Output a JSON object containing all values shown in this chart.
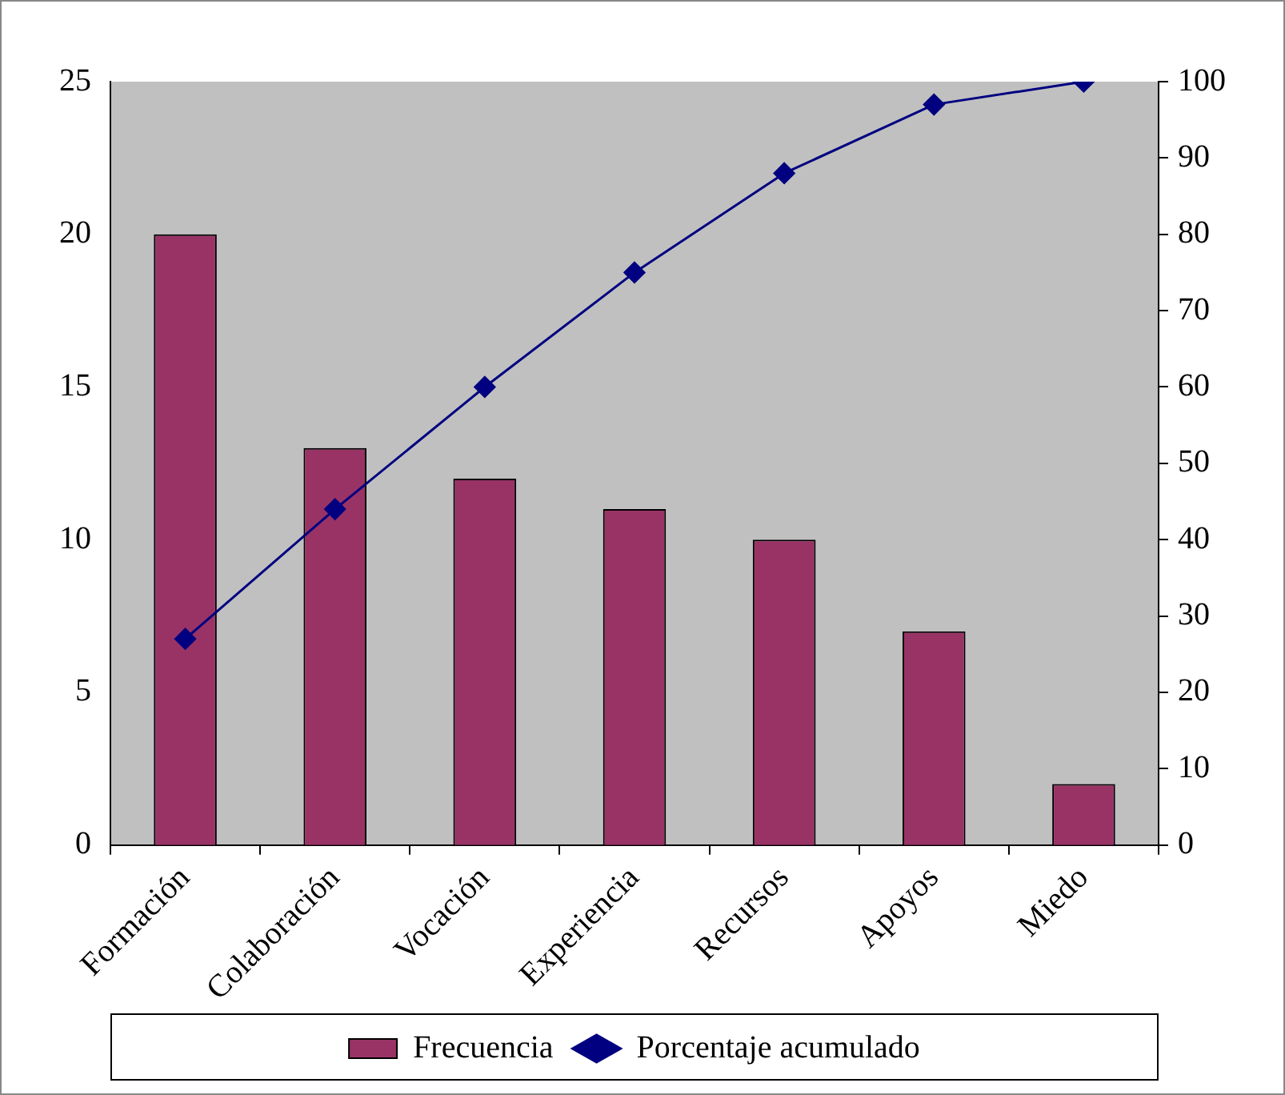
{
  "chart_data": {
    "type": "bar",
    "categories": [
      "Formación",
      "Colaboración",
      "Vocación",
      "Experiencia",
      "Recursos",
      "Apoyos",
      "Miedo"
    ],
    "series": [
      {
        "name": "Frecuencia",
        "color": "#993366",
        "values": [
          20,
          13,
          12,
          11,
          10,
          7,
          2
        ]
      },
      {
        "name": "Porcentaje acumulado",
        "type": "line",
        "axis": "y2",
        "color": "#000080",
        "marker": "diamond",
        "values": [
          27,
          44,
          60,
          75,
          88,
          97,
          100
        ]
      }
    ],
    "ylim": [
      0,
      25
    ],
    "yticks": [
      0,
      5,
      10,
      15,
      20,
      25
    ],
    "y2lim": [
      0,
      100
    ],
    "y2ticks": [
      0,
      10,
      20,
      30,
      40,
      50,
      60,
      70,
      80,
      90,
      100
    ],
    "grid": false,
    "legend": "bottom"
  }
}
